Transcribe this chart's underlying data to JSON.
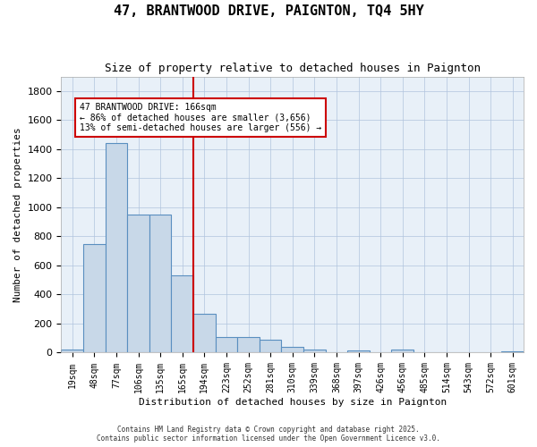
{
  "title": "47, BRANTWOOD DRIVE, PAIGNTON, TQ4 5HY",
  "subtitle": "Size of property relative to detached houses in Paignton",
  "xlabel": "Distribution of detached houses by size in Paignton",
  "ylabel": "Number of detached properties",
  "categories": [
    "19sqm",
    "48sqm",
    "77sqm",
    "106sqm",
    "135sqm",
    "165sqm",
    "194sqm",
    "223sqm",
    "252sqm",
    "281sqm",
    "310sqm",
    "339sqm",
    "368sqm",
    "397sqm",
    "426sqm",
    "456sqm",
    "485sqm",
    "514sqm",
    "543sqm",
    "572sqm",
    "601sqm"
  ],
  "values": [
    20,
    750,
    1440,
    950,
    950,
    530,
    270,
    110,
    110,
    90,
    40,
    20,
    5,
    15,
    5,
    20,
    0,
    0,
    5,
    0,
    10
  ],
  "bar_color": "#c8d8e8",
  "bar_edge_color": "#5a8fc0",
  "vline_x": 5.5,
  "vline_color": "#cc0000",
  "annotation_title": "47 BRANTWOOD DRIVE: 166sqm",
  "annotation_line1": "← 86% of detached houses are smaller (3,656)",
  "annotation_line2": "13% of semi-detached houses are larger (556) →",
  "annotation_box_color": "#ffffff",
  "annotation_box_edge": "#cc0000",
  "ylim": [
    0,
    1900
  ],
  "yticks": [
    0,
    200,
    400,
    600,
    800,
    1000,
    1200,
    1400,
    1600,
    1800
  ],
  "bg_color": "#e8f0f8",
  "footer_line1": "Contains HM Land Registry data © Crown copyright and database right 2025.",
  "footer_line2": "Contains public sector information licensed under the Open Government Licence v3.0."
}
